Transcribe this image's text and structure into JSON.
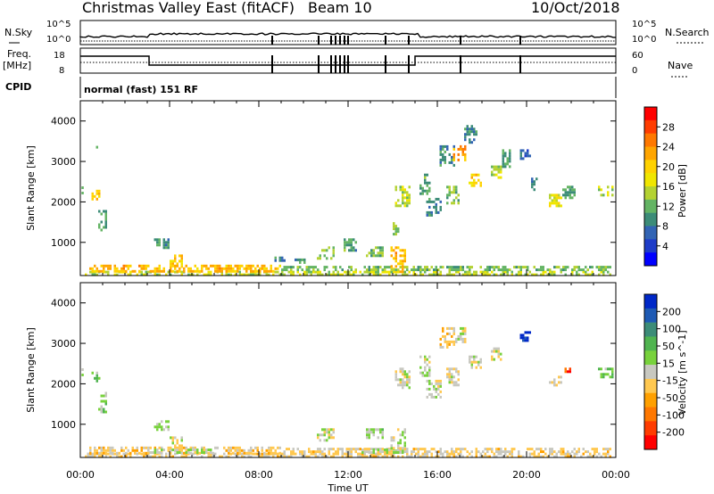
{
  "header": {
    "radar_name": "Christmas Valley East (fitACF)",
    "beam": "Beam 10",
    "date": "10/Oct/2018"
  },
  "side_labels": {
    "nsky": "N.Sky",
    "nsearch": "N.Search",
    "freq": "Freq.",
    "freq_unit": "[MHz]",
    "nave": "Nave",
    "cpid": "CPID",
    "cpid_value": "normal (fast) 151 RF"
  },
  "noise_ticks": {
    "left_top": "10^5",
    "left_bottom": "10^0",
    "right_top": "10^5",
    "right_bottom": "10^0"
  },
  "freq_ticks": {
    "left_top": "18",
    "left_bottom": "8",
    "right_top": "60",
    "right_bottom": "0"
  },
  "x_axis": {
    "label": "Time UT",
    "ticks": [
      "00:00",
      "04:00",
      "08:00",
      "12:00",
      "16:00",
      "20:00",
      "00:00"
    ]
  },
  "power_colorbar": {
    "label": "Power [dB]",
    "ticks": [
      "28",
      "24",
      "20",
      "16",
      "12",
      "8",
      "4"
    ],
    "colors": [
      "#ff0000",
      "#ff3c00",
      "#ff7800",
      "#ffa500",
      "#ffd200",
      "#f0e600",
      "#b4d232",
      "#64b464",
      "#3c8c78",
      "#3264b4",
      "#1e3cc8",
      "#0000ff"
    ]
  },
  "velocity_colorbar": {
    "label": "Velocity [m s^-1]",
    "ticks": [
      "200",
      "100",
      "50",
      "15",
      "-15",
      "-50",
      "-100",
      "-200"
    ],
    "colors": [
      "#0028c8",
      "#1e5ab4",
      "#3c8c78",
      "#50b450",
      "#78d23c",
      "#c8c8c0",
      "#ffc850",
      "#ffa000",
      "#ff7800",
      "#ff3c00",
      "#ff0000"
    ]
  },
  "chart_data": [
    {
      "type": "heatmap",
      "title": "Power",
      "xlabel": "Time UT",
      "ylabel": "Slant Range [km]",
      "xlim": [
        0,
        24
      ],
      "ylim": [
        180,
        4500
      ],
      "yticks": [
        1000,
        2000,
        3000,
        4000
      ],
      "colorbar_label": "Power [dB]",
      "clim": [
        0,
        30
      ],
      "patches": [
        {
          "t": [
            0.05,
            0.15
          ],
          "r": [
            2250,
            2450
          ],
          "v": 12
        },
        {
          "t": [
            0.5,
            0.85
          ],
          "r": [
            2050,
            2300
          ],
          "v": 18
        },
        {
          "t": [
            0.8,
            1.2
          ],
          "r": [
            1300,
            1800
          ],
          "v": 10
        },
        {
          "t": [
            0.7,
            0.75
          ],
          "r": [
            3300,
            3450
          ],
          "v": 8
        },
        {
          "t": [
            3.3,
            4.0
          ],
          "r": [
            850,
            1100
          ],
          "v": 10
        },
        {
          "t": [
            4.0,
            4.6
          ],
          "r": [
            400,
            700
          ],
          "v": 18
        },
        {
          "t": [
            8.7,
            9.2
          ],
          "r": [
            550,
            650
          ],
          "v": 8
        },
        {
          "t": [
            9.6,
            10.2
          ],
          "r": [
            500,
            600
          ],
          "v": 8
        },
        {
          "t": [
            10.6,
            11.4
          ],
          "r": [
            600,
            900
          ],
          "v": 12
        },
        {
          "t": [
            11.8,
            12.3
          ],
          "r": [
            800,
            1100
          ],
          "v": 10
        },
        {
          "t": [
            12.8,
            13.6
          ],
          "r": [
            650,
            900
          ],
          "v": 12
        },
        {
          "t": [
            13.9,
            14.6
          ],
          "r": [
            300,
            900
          ],
          "v": 20
        },
        {
          "t": [
            14.0,
            14.3
          ],
          "r": [
            1200,
            1500
          ],
          "v": 12
        },
        {
          "t": [
            14.1,
            14.8
          ],
          "r": [
            1900,
            2400
          ],
          "v": 14
        },
        {
          "t": [
            15.2,
            15.7
          ],
          "r": [
            2200,
            2700
          ],
          "v": 10
        },
        {
          "t": [
            15.5,
            16.2
          ],
          "r": [
            1700,
            2100
          ],
          "v": 8
        },
        {
          "t": [
            16.1,
            16.8
          ],
          "r": [
            2900,
            3400
          ],
          "v": 8
        },
        {
          "t": [
            16.7,
            17.3
          ],
          "r": [
            3050,
            3400
          ],
          "v": 22
        },
        {
          "t": [
            16.4,
            17.0
          ],
          "r": [
            2000,
            2400
          ],
          "v": 12
        },
        {
          "t": [
            17.4,
            18.0
          ],
          "r": [
            2400,
            2700
          ],
          "v": 18
        },
        {
          "t": [
            17.2,
            17.8
          ],
          "r": [
            3500,
            3900
          ],
          "v": 8
        },
        {
          "t": [
            18.4,
            18.9
          ],
          "r": [
            2600,
            2900
          ],
          "v": 14
        },
        {
          "t": [
            18.9,
            19.3
          ],
          "r": [
            2900,
            3300
          ],
          "v": 10
        },
        {
          "t": [
            19.7,
            20.2
          ],
          "r": [
            3050,
            3300
          ],
          "v": 6
        },
        {
          "t": [
            20.2,
            20.5
          ],
          "r": [
            2300,
            2600
          ],
          "v": 8
        },
        {
          "t": [
            21.0,
            21.6
          ],
          "r": [
            1900,
            2200
          ],
          "v": 16
        },
        {
          "t": [
            21.6,
            22.2
          ],
          "r": [
            2100,
            2400
          ],
          "v": 10
        },
        {
          "t": [
            23.2,
            23.9
          ],
          "r": [
            2150,
            2400
          ],
          "v": 14
        },
        {
          "t": [
            0.2,
            23.8
          ],
          "r": [
            190,
            300
          ],
          "v": 14
        },
        {
          "t": [
            0.3,
            9.0
          ],
          "r": [
            300,
            450
          ],
          "v": 20
        },
        {
          "t": [
            9.0,
            23.8
          ],
          "r": [
            300,
            420
          ],
          "v": 12
        }
      ]
    },
    {
      "type": "heatmap",
      "title": "Velocity",
      "xlabel": "Time UT",
      "ylabel": "Slant Range [km]",
      "xlim": [
        0,
        24
      ],
      "ylim": [
        180,
        4500
      ],
      "yticks": [
        1000,
        2000,
        3000,
        4000
      ],
      "colorbar_label": "Velocity [m s^-1]",
      "clim": [
        -250,
        250
      ],
      "patches": [
        {
          "t": [
            0.05,
            0.15
          ],
          "r": [
            2250,
            2450
          ],
          "v": 30
        },
        {
          "t": [
            0.5,
            0.85
          ],
          "r": [
            2050,
            2300
          ],
          "v": 60
        },
        {
          "t": [
            0.8,
            1.2
          ],
          "r": [
            1300,
            1800
          ],
          "v": 40
        },
        {
          "t": [
            0.7,
            0.75
          ],
          "r": [
            3300,
            3450
          ],
          "v": 80
        },
        {
          "t": [
            3.3,
            4.0
          ],
          "r": [
            850,
            1100
          ],
          "v": 25
        },
        {
          "t": [
            4.0,
            4.6
          ],
          "r": [
            400,
            700
          ],
          "v": 0
        },
        {
          "t": [
            10.6,
            11.4
          ],
          "r": [
            600,
            900
          ],
          "v": 0
        },
        {
          "t": [
            12.8,
            13.6
          ],
          "r": [
            650,
            900
          ],
          "v": 30
        },
        {
          "t": [
            13.9,
            14.6
          ],
          "r": [
            300,
            900
          ],
          "v": 0
        },
        {
          "t": [
            14.1,
            14.8
          ],
          "r": [
            1900,
            2400
          ],
          "v": 0
        },
        {
          "t": [
            15.2,
            15.7
          ],
          "r": [
            2200,
            2700
          ],
          "v": 0
        },
        {
          "t": [
            15.5,
            16.2
          ],
          "r": [
            1700,
            2100
          ],
          "v": 0
        },
        {
          "t": [
            16.1,
            16.8
          ],
          "r": [
            2900,
            3400
          ],
          "v": -60
        },
        {
          "t": [
            16.7,
            17.3
          ],
          "r": [
            3050,
            3400
          ],
          "v": 0
        },
        {
          "t": [
            16.4,
            17.0
          ],
          "r": [
            2000,
            2400
          ],
          "v": 0
        },
        {
          "t": [
            17.4,
            18.0
          ],
          "r": [
            2400,
            2700
          ],
          "v": 0
        },
        {
          "t": [
            18.4,
            18.9
          ],
          "r": [
            2600,
            2900
          ],
          "v": 0
        },
        {
          "t": [
            19.7,
            20.2
          ],
          "r": [
            3050,
            3300
          ],
          "v": 220
        },
        {
          "t": [
            21.0,
            21.6
          ],
          "r": [
            1900,
            2200
          ],
          "v": 0
        },
        {
          "t": [
            21.7,
            22.0
          ],
          "r": [
            2300,
            2400
          ],
          "v": -180
        },
        {
          "t": [
            23.2,
            23.9
          ],
          "r": [
            2150,
            2400
          ],
          "v": 60
        },
        {
          "t": [
            0.2,
            23.8
          ],
          "r": [
            190,
            300
          ],
          "v": -30
        },
        {
          "t": [
            0.3,
            9.0
          ],
          "r": [
            300,
            450
          ],
          "v": -40
        },
        {
          "t": [
            9.0,
            23.8
          ],
          "r": [
            300,
            420
          ],
          "v": -30
        },
        {
          "t": [
            3.0,
            6.0
          ],
          "r": [
            300,
            400
          ],
          "v": 20
        },
        {
          "t": [
            12.5,
            14.5
          ],
          "r": [
            300,
            400
          ],
          "v": 20
        }
      ]
    }
  ]
}
